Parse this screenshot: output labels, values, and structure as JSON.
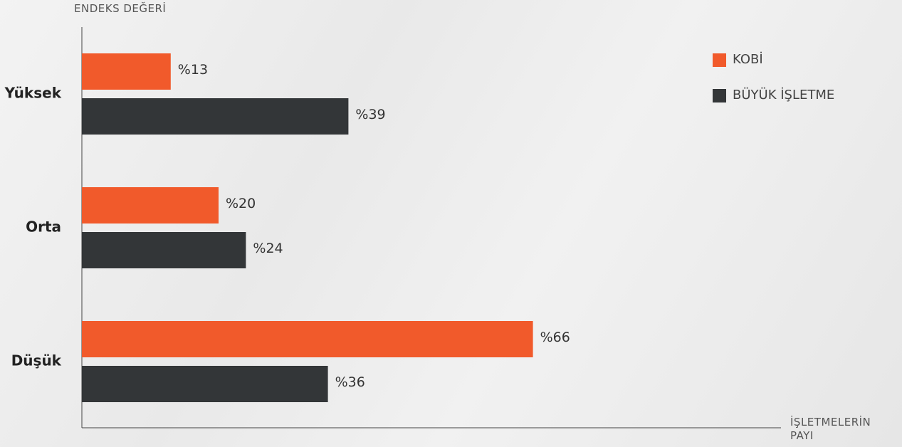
{
  "chart_data": {
    "type": "bar",
    "horizontal": true,
    "y_label": "ENDEKS DEĞERİ",
    "x_label": "İŞLETMELERİN PAYI",
    "categories": [
      "Yüksek",
      "Orta",
      "Düşük"
    ],
    "series": [
      {
        "name": "KOBİ",
        "color": "#f15a2b",
        "values": [
          13,
          20,
          66
        ],
        "value_labels": [
          "%13",
          "%20",
          "%66"
        ]
      },
      {
        "name": "BÜYÜK İŞLETME",
        "color": "#333638",
        "values": [
          39,
          24,
          36
        ],
        "value_labels": [
          "%39",
          "%24",
          "%36"
        ]
      }
    ],
    "xlim": [
      0,
      100
    ],
    "legend": "top-right"
  }
}
